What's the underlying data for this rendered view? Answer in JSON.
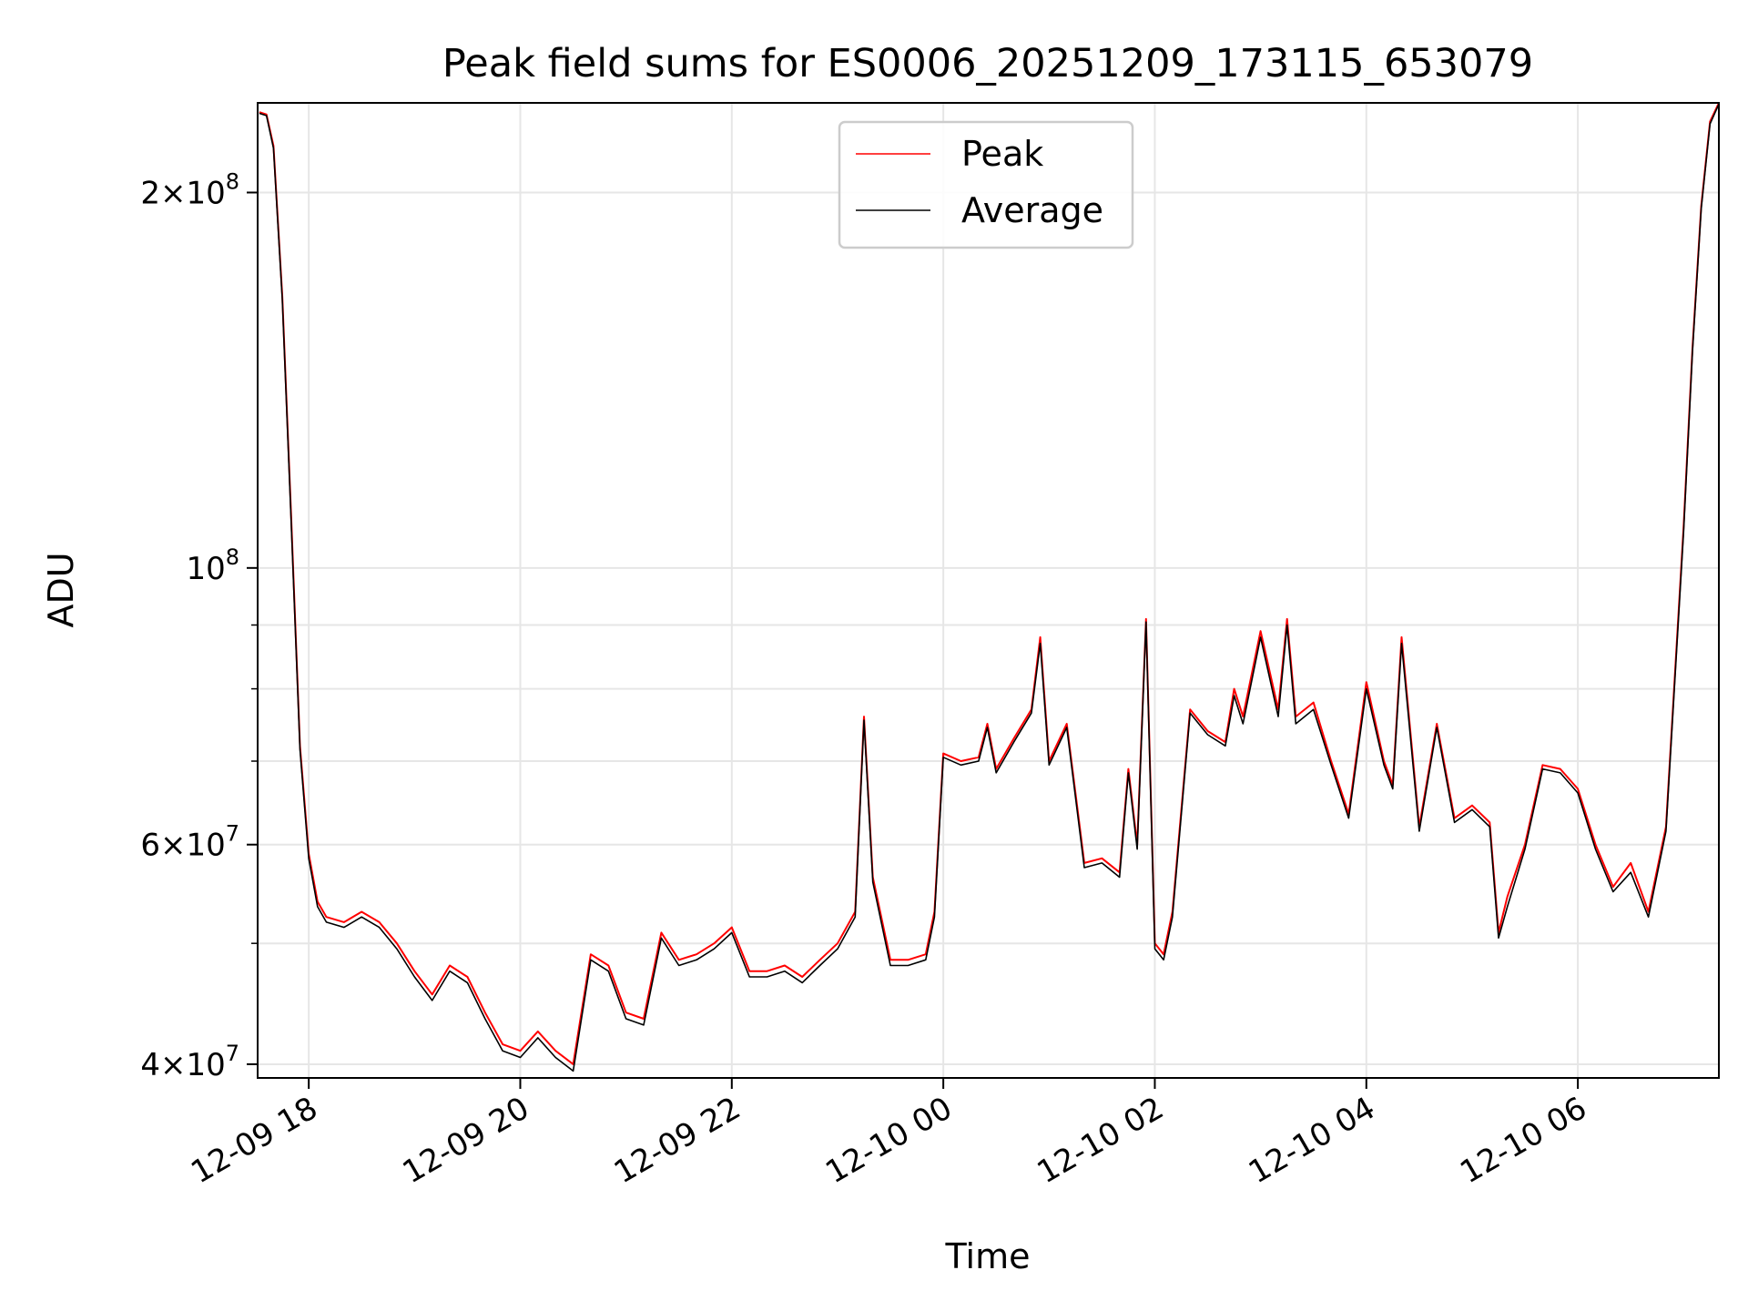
{
  "chart_data": {
    "type": "line",
    "title": "Peak field sums for ES0006_20251209_173115_653079",
    "xlabel": "Time",
    "ylabel": "ADU",
    "yscale": "log",
    "ylim": [
      39000000,
      236000000
    ],
    "xlim": [
      "2025-12-09 17:31",
      "2025-12-10 07:20"
    ],
    "grid": true,
    "legend_position": "top-center",
    "x_ticks": [
      {
        "label": "12-09 18",
        "value": "2025-12-09 18:00"
      },
      {
        "label": "12-09 20",
        "value": "2025-12-09 20:00"
      },
      {
        "label": "12-09 22",
        "value": "2025-12-09 22:00"
      },
      {
        "label": "12-10 00",
        "value": "2025-12-10 00:00"
      },
      {
        "label": "12-10 02",
        "value": "2025-12-10 02:00"
      },
      {
        "label": "12-10 04",
        "value": "2025-12-10 04:00"
      },
      {
        "label": "12-10 06",
        "value": "2025-12-10 06:00"
      }
    ],
    "y_ticks": [
      {
        "mantissa": "4",
        "exp": "7",
        "value": 40000000
      },
      {
        "mantissa": "6",
        "exp": "7",
        "value": 60000000
      },
      {
        "mantissa": "",
        "exp": "8",
        "value": 100000000
      },
      {
        "mantissa": "2",
        "exp": "8",
        "value": 200000000
      }
    ],
    "y_minor_ticks": [
      50000000,
      70000000,
      80000000,
      90000000
    ],
    "series": [
      {
        "name": "Peak",
        "color": "#ff0000",
        "x": [
          "2025-12-09 17:32",
          "2025-12-09 17:36",
          "2025-12-09 17:40",
          "2025-12-09 17:45",
          "2025-12-09 17:50",
          "2025-12-09 17:55",
          "2025-12-09 18:00",
          "2025-12-09 18:05",
          "2025-12-09 18:10",
          "2025-12-09 18:20",
          "2025-12-09 18:30",
          "2025-12-09 18:40",
          "2025-12-09 18:50",
          "2025-12-09 19:00",
          "2025-12-09 19:10",
          "2025-12-09 19:20",
          "2025-12-09 19:30",
          "2025-12-09 19:40",
          "2025-12-09 19:50",
          "2025-12-09 20:00",
          "2025-12-09 20:10",
          "2025-12-09 20:20",
          "2025-12-09 20:30",
          "2025-12-09 20:40",
          "2025-12-09 20:50",
          "2025-12-09 21:00",
          "2025-12-09 21:10",
          "2025-12-09 21:20",
          "2025-12-09 21:30",
          "2025-12-09 21:40",
          "2025-12-09 21:50",
          "2025-12-09 22:00",
          "2025-12-09 22:10",
          "2025-12-09 22:20",
          "2025-12-09 22:30",
          "2025-12-09 22:40",
          "2025-12-09 22:50",
          "2025-12-09 23:00",
          "2025-12-09 23:10",
          "2025-12-09 23:15",
          "2025-12-09 23:20",
          "2025-12-09 23:30",
          "2025-12-09 23:40",
          "2025-12-09 23:50",
          "2025-12-09 23:55",
          "2025-12-10 00:00",
          "2025-12-10 00:10",
          "2025-12-10 00:20",
          "2025-12-10 00:25",
          "2025-12-10 00:30",
          "2025-12-10 00:40",
          "2025-12-10 00:50",
          "2025-12-10 00:55",
          "2025-12-10 01:00",
          "2025-12-10 01:10",
          "2025-12-10 01:20",
          "2025-12-10 01:30",
          "2025-12-10 01:40",
          "2025-12-10 01:45",
          "2025-12-10 01:50",
          "2025-12-10 01:55",
          "2025-12-10 02:00",
          "2025-12-10 02:05",
          "2025-12-10 02:10",
          "2025-12-10 02:20",
          "2025-12-10 02:30",
          "2025-12-10 02:40",
          "2025-12-10 02:45",
          "2025-12-10 02:50",
          "2025-12-10 03:00",
          "2025-12-10 03:10",
          "2025-12-10 03:15",
          "2025-12-10 03:20",
          "2025-12-10 03:30",
          "2025-12-10 03:40",
          "2025-12-10 03:50",
          "2025-12-10 04:00",
          "2025-12-10 04:10",
          "2025-12-10 04:15",
          "2025-12-10 04:20",
          "2025-12-10 04:30",
          "2025-12-10 04:40",
          "2025-12-10 04:50",
          "2025-12-10 05:00",
          "2025-12-10 05:10",
          "2025-12-10 05:15",
          "2025-12-10 05:20",
          "2025-12-10 05:30",
          "2025-12-10 05:40",
          "2025-12-10 05:50",
          "2025-12-10 06:00",
          "2025-12-10 06:10",
          "2025-12-10 06:20",
          "2025-12-10 06:30",
          "2025-12-10 06:40",
          "2025-12-10 06:50",
          "2025-12-10 07:00",
          "2025-12-10 07:05",
          "2025-12-10 07:10",
          "2025-12-10 07:15",
          "2025-12-10 07:20"
        ],
        "values": [
          232000000,
          231000000,
          218000000,
          165000000,
          110000000,
          72000000,
          59000000,
          54000000,
          52500000,
          52000000,
          53000000,
          52000000,
          50000000,
          47500000,
          45500000,
          48000000,
          47000000,
          44000000,
          41500000,
          41000000,
          42500000,
          41000000,
          40000000,
          49000000,
          48000000,
          44000000,
          43500000,
          51000000,
          48500000,
          49000000,
          50000000,
          51500000,
          47500000,
          47500000,
          48000000,
          47000000,
          48500000,
          50000000,
          53000000,
          76000000,
          56500000,
          48500000,
          48500000,
          49000000,
          53000000,
          71000000,
          70000000,
          70500000,
          75000000,
          69000000,
          73000000,
          77000000,
          88000000,
          70000000,
          75000000,
          58000000,
          58500000,
          57000000,
          69000000,
          60000000,
          91000000,
          50000000,
          49000000,
          53000000,
          77000000,
          74000000,
          72500000,
          80000000,
          76000000,
          89000000,
          77000000,
          91000000,
          76000000,
          78000000,
          70000000,
          63500000,
          81000000,
          70000000,
          67000000,
          88000000,
          62000000,
          75000000,
          63000000,
          64500000,
          62500000,
          51000000,
          54500000,
          60000000,
          69500000,
          69000000,
          66500000,
          60000000,
          55500000,
          58000000,
          53000000,
          62000000,
          108000000,
          150000000,
          195000000,
          228000000,
          236000000
        ]
      },
      {
        "name": "Average",
        "color": "#000000",
        "x": [
          "2025-12-09 17:32",
          "2025-12-09 17:36",
          "2025-12-09 17:40",
          "2025-12-09 17:45",
          "2025-12-09 17:50",
          "2025-12-09 17:55",
          "2025-12-09 18:00",
          "2025-12-09 18:05",
          "2025-12-09 18:10",
          "2025-12-09 18:20",
          "2025-12-09 18:30",
          "2025-12-09 18:40",
          "2025-12-09 18:50",
          "2025-12-09 19:00",
          "2025-12-09 19:10",
          "2025-12-09 19:20",
          "2025-12-09 19:30",
          "2025-12-09 19:40",
          "2025-12-09 19:50",
          "2025-12-09 20:00",
          "2025-12-09 20:10",
          "2025-12-09 20:20",
          "2025-12-09 20:30",
          "2025-12-09 20:40",
          "2025-12-09 20:50",
          "2025-12-09 21:00",
          "2025-12-09 21:10",
          "2025-12-09 21:20",
          "2025-12-09 21:30",
          "2025-12-09 21:40",
          "2025-12-09 21:50",
          "2025-12-09 22:00",
          "2025-12-09 22:10",
          "2025-12-09 22:20",
          "2025-12-09 22:30",
          "2025-12-09 22:40",
          "2025-12-09 22:50",
          "2025-12-09 23:00",
          "2025-12-09 23:10",
          "2025-12-09 23:15",
          "2025-12-09 23:20",
          "2025-12-09 23:30",
          "2025-12-09 23:40",
          "2025-12-09 23:50",
          "2025-12-09 23:55",
          "2025-12-10 00:00",
          "2025-12-10 00:10",
          "2025-12-10 00:20",
          "2025-12-10 00:25",
          "2025-12-10 00:30",
          "2025-12-10 00:40",
          "2025-12-10 00:50",
          "2025-12-10 00:55",
          "2025-12-10 01:00",
          "2025-12-10 01:10",
          "2025-12-10 01:20",
          "2025-12-10 01:30",
          "2025-12-10 01:40",
          "2025-12-10 01:45",
          "2025-12-10 01:50",
          "2025-12-10 01:55",
          "2025-12-10 02:00",
          "2025-12-10 02:05",
          "2025-12-10 02:10",
          "2025-12-10 02:20",
          "2025-12-10 02:30",
          "2025-12-10 02:40",
          "2025-12-10 02:45",
          "2025-12-10 02:50",
          "2025-12-10 03:00",
          "2025-12-10 03:10",
          "2025-12-10 03:15",
          "2025-12-10 03:20",
          "2025-12-10 03:30",
          "2025-12-10 03:40",
          "2025-12-10 03:50",
          "2025-12-10 04:00",
          "2025-12-10 04:10",
          "2025-12-10 04:15",
          "2025-12-10 04:20",
          "2025-12-10 04:30",
          "2025-12-10 04:40",
          "2025-12-10 04:50",
          "2025-12-10 05:00",
          "2025-12-10 05:10",
          "2025-12-10 05:15",
          "2025-12-10 05:20",
          "2025-12-10 05:30",
          "2025-12-10 05:40",
          "2025-12-10 05:50",
          "2025-12-10 06:00",
          "2025-12-10 06:10",
          "2025-12-10 06:20",
          "2025-12-10 06:30",
          "2025-12-10 06:40",
          "2025-12-10 06:50",
          "2025-12-10 07:00",
          "2025-12-10 07:05",
          "2025-12-10 07:10",
          "2025-12-10 07:15",
          "2025-12-10 07:20"
        ],
        "values": [
          231500000,
          230500000,
          217000000,
          164000000,
          109000000,
          71500000,
          58500000,
          53500000,
          52000000,
          51500000,
          52500000,
          51500000,
          49500000,
          47000000,
          45000000,
          47500000,
          46500000,
          43500000,
          41000000,
          40500000,
          42000000,
          40500000,
          39500000,
          48500000,
          47500000,
          43500000,
          43000000,
          50500000,
          48000000,
          48500000,
          49500000,
          51000000,
          47000000,
          47000000,
          47500000,
          46500000,
          48000000,
          49500000,
          52500000,
          75500000,
          56000000,
          48000000,
          48000000,
          48500000,
          52500000,
          70500000,
          69500000,
          70000000,
          74500000,
          68500000,
          72500000,
          76500000,
          87000000,
          69500000,
          74500000,
          57500000,
          58000000,
          56500000,
          68500000,
          59500000,
          90500000,
          49500000,
          48500000,
          52500000,
          76500000,
          73500000,
          72000000,
          79000000,
          75000000,
          88000000,
          76000000,
          90000000,
          75000000,
          77000000,
          69500000,
          63000000,
          80000000,
          69500000,
          66500000,
          87000000,
          61500000,
          74500000,
          62500000,
          64000000,
          62000000,
          50500000,
          53500000,
          59500000,
          69000000,
          68500000,
          66000000,
          59500000,
          55000000,
          57000000,
          52500000,
          61500000,
          107000000,
          149000000,
          194000000,
          227000000,
          235500000
        ]
      }
    ]
  }
}
